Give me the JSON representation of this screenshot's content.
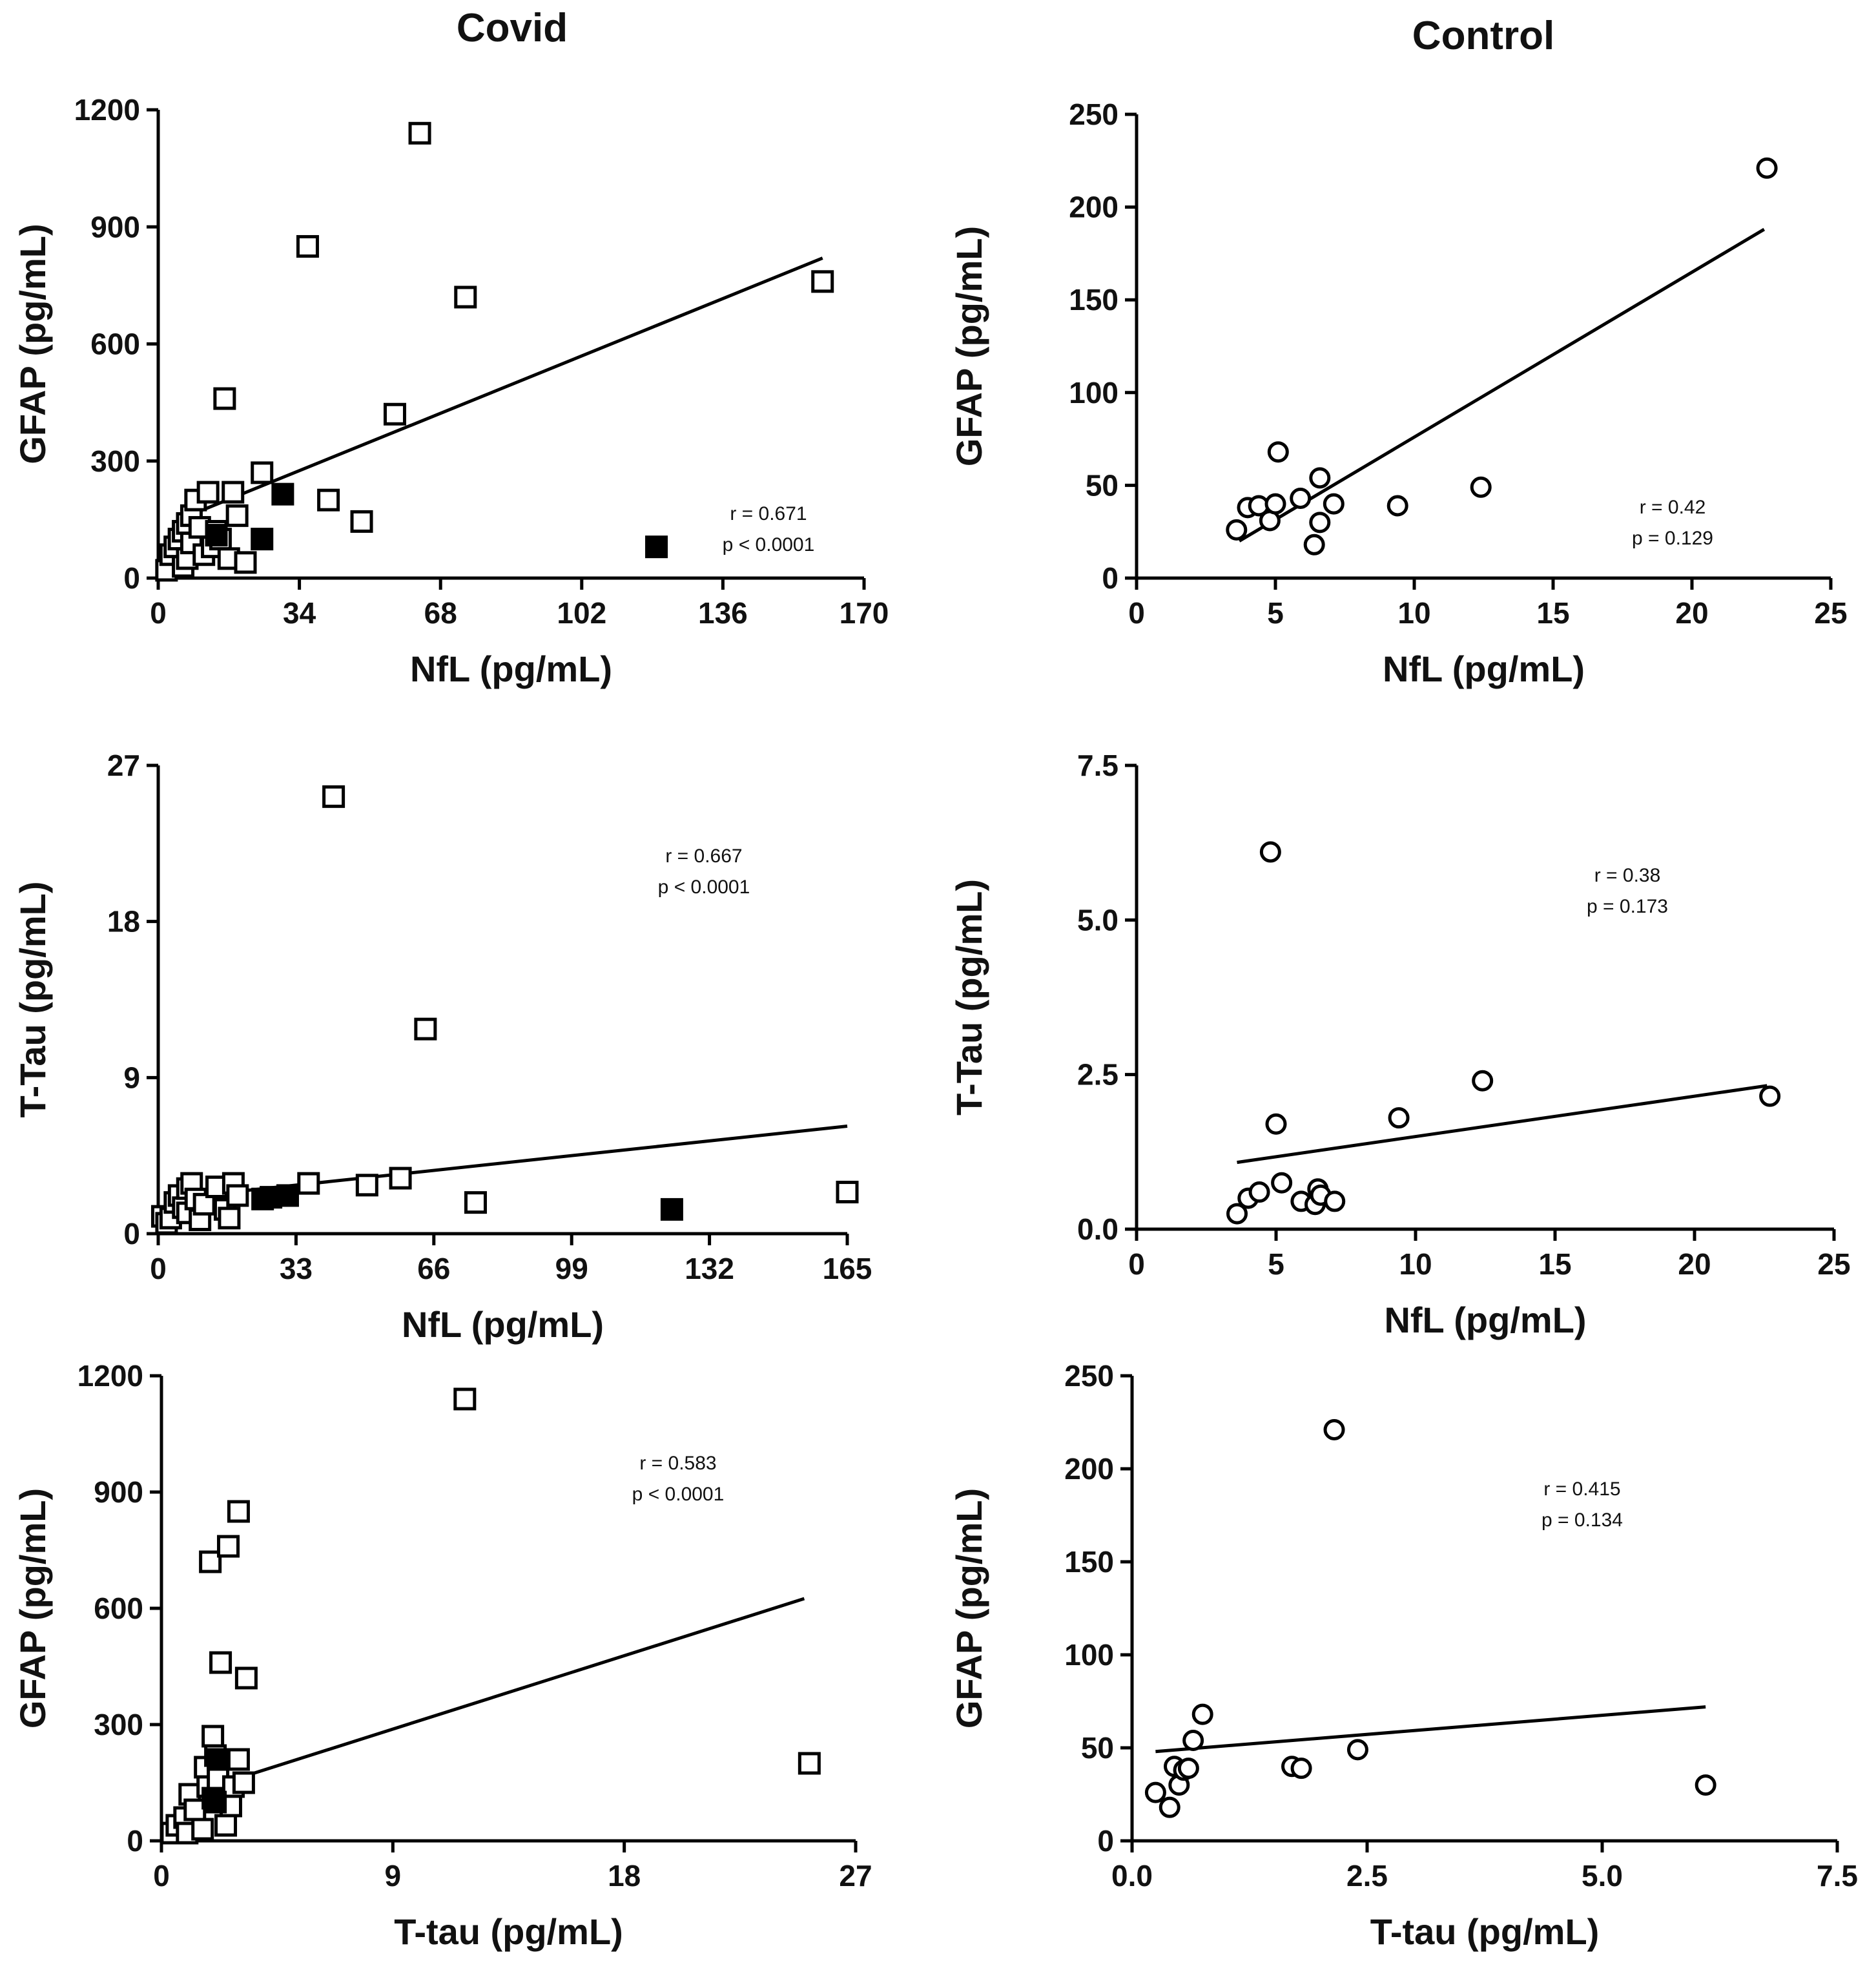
{
  "column_titles": {
    "left": "Covid",
    "right": "Control"
  },
  "chart_data": [
    {
      "id": "p1",
      "type": "scatter",
      "title": "",
      "xlabel": "NfL (pg/mL)",
      "ylabel": "GFAP (pg/mL)",
      "xlim": [
        0,
        170
      ],
      "ylim": [
        0,
        1200
      ],
      "xticks": [
        0,
        34,
        68,
        102,
        136,
        170
      ],
      "yticks": [
        0,
        300,
        600,
        900,
        1200
      ],
      "xtick_labels": [
        "0",
        "34",
        "68",
        "102",
        "136",
        "170"
      ],
      "ytick_labels": [
        "0",
        "300",
        "600",
        "900",
        "1200"
      ],
      "marker": "square",
      "annotation": {
        "r": "r = 0.671",
        "p": "p < 0.0001"
      },
      "fit_line": {
        "x": [
          5,
          160
        ],
        "y": [
          150,
          820
        ]
      },
      "series": [
        {
          "name": "open",
          "fill": "none",
          "points": [
            [
              2,
              20
            ],
            [
              3,
              60
            ],
            [
              4,
              80
            ],
            [
              5,
              100
            ],
            [
              6,
              120
            ],
            [
              6,
              30
            ],
            [
              7,
              140
            ],
            [
              7,
              50
            ],
            [
              8,
              160
            ],
            [
              8,
              90
            ],
            [
              9,
              200
            ],
            [
              10,
              130
            ],
            [
              11,
              60
            ],
            [
              12,
              220
            ],
            [
              13,
              80
            ],
            [
              14,
              120
            ],
            [
              15,
              100
            ],
            [
              16,
              460
            ],
            [
              17,
              50
            ],
            [
              18,
              220
            ],
            [
              19,
              160
            ],
            [
              21,
              40
            ],
            [
              25,
              270
            ],
            [
              36,
              850
            ],
            [
              41,
              200
            ],
            [
              49,
              145
            ],
            [
              57,
              420
            ],
            [
              63,
              1140
            ],
            [
              74,
              720
            ],
            [
              160,
              760
            ]
          ]
        },
        {
          "name": "filled",
          "fill": "#000000",
          "points": [
            [
              14,
              110
            ],
            [
              25,
              100
            ],
            [
              30,
              215
            ],
            [
              120,
              80
            ]
          ]
        }
      ]
    },
    {
      "id": "p2",
      "type": "scatter",
      "title": "",
      "xlabel": "NfL (pg/mL)",
      "ylabel": "GFAP (pg/mL)",
      "xlim": [
        0,
        25
      ],
      "ylim": [
        0,
        250
      ],
      "xticks": [
        0,
        5,
        10,
        15,
        20,
        25
      ],
      "yticks": [
        0,
        50,
        100,
        150,
        200,
        250
      ],
      "xtick_labels": [
        "0",
        "5",
        "10",
        "15",
        "20",
        "25"
      ],
      "ytick_labels": [
        "0",
        "50",
        "100",
        "150",
        "200",
        "250"
      ],
      "marker": "circle",
      "annotation": {
        "r": "r = 0.42",
        "p": "p = 0.129"
      },
      "fit_line": {
        "x": [
          3.7,
          22.6
        ],
        "y": [
          20,
          188
        ]
      },
      "series": [
        {
          "name": "control",
          "fill": "none",
          "points": [
            [
              3.6,
              26
            ],
            [
              4.0,
              38
            ],
            [
              4.4,
              39
            ],
            [
              4.8,
              31
            ],
            [
              5.0,
              40
            ],
            [
              5.1,
              68
            ],
            [
              5.9,
              43
            ],
            [
              6.4,
              18
            ],
            [
              6.6,
              30
            ],
            [
              6.6,
              54
            ],
            [
              7.1,
              40
            ],
            [
              9.4,
              39
            ],
            [
              12.4,
              49
            ],
            [
              22.7,
              221
            ]
          ]
        }
      ]
    },
    {
      "id": "p3",
      "type": "scatter",
      "title": "",
      "xlabel": "NfL (pg/mL)",
      "ylabel": "T-Tau (pg/mL)",
      "xlim": [
        0,
        165
      ],
      "ylim": [
        0,
        27
      ],
      "xticks": [
        0,
        33,
        66,
        99,
        132,
        165
      ],
      "yticks": [
        0,
        9,
        18,
        27
      ],
      "xtick_labels": [
        "0",
        "33",
        "66",
        "99",
        "132",
        "165"
      ],
      "ytick_labels": [
        "0",
        "9",
        "18",
        "27"
      ],
      "marker": "square",
      "annotation": {
        "r": "r = 0.667",
        "p": "p < 0.0001"
      },
      "fit_line": {
        "x": [
          2,
          165
        ],
        "y": [
          2.0,
          6.2
        ]
      },
      "series": [
        {
          "name": "open",
          "fill": "none",
          "points": [
            [
              1,
              1.0
            ],
            [
              2,
              0.6
            ],
            [
              3,
              0.9
            ],
            [
              4,
              1.8
            ],
            [
              5,
              2.2
            ],
            [
              6,
              1.5
            ],
            [
              7,
              2.6
            ],
            [
              7,
              1.2
            ],
            [
              8,
              2.9
            ],
            [
              9,
              2.0
            ],
            [
              10,
              0.8
            ],
            [
              11,
              1.7
            ],
            [
              14,
              2.7
            ],
            [
              16,
              1.4
            ],
            [
              17,
              0.9
            ],
            [
              18,
              2.9
            ],
            [
              19,
              2.2
            ],
            [
              36,
              2.9
            ],
            [
              50,
              2.8
            ],
            [
              58,
              3.2
            ],
            [
              64,
              11.8
            ],
            [
              42,
              25.2
            ],
            [
              76,
              1.8
            ],
            [
              165,
              2.4
            ]
          ]
        },
        {
          "name": "filled",
          "fill": "#000000",
          "points": [
            [
              25,
              2.0
            ],
            [
              27,
              2.1
            ],
            [
              31,
              2.2
            ],
            [
              123,
              1.4
            ]
          ]
        }
      ]
    },
    {
      "id": "p4",
      "type": "scatter",
      "title": "",
      "xlabel": "NfL (pg/mL)",
      "ylabel": "T-Tau (pg/mL)",
      "xlim": [
        0,
        25
      ],
      "ylim": [
        0,
        7.5
      ],
      "xticks": [
        0,
        5,
        10,
        15,
        20,
        25
      ],
      "yticks": [
        0,
        2.5,
        5.0,
        7.5
      ],
      "xtick_labels": [
        "0",
        "5",
        "10",
        "15",
        "20",
        "25"
      ],
      "ytick_labels": [
        "0.0",
        "2.5",
        "5.0",
        "7.5"
      ],
      "marker": "circle",
      "annotation": {
        "r": "r = 0.38",
        "p": "p = 0.173"
      },
      "fit_line": {
        "x": [
          3.6,
          22.6
        ],
        "y": [
          1.08,
          2.32
        ]
      },
      "series": [
        {
          "name": "control",
          "fill": "none",
          "points": [
            [
              3.6,
              0.25
            ],
            [
              4.0,
              0.5
            ],
            [
              4.4,
              0.6
            ],
            [
              4.8,
              6.1
            ],
            [
              5.0,
              1.7
            ],
            [
              5.2,
              0.75
            ],
            [
              5.9,
              0.45
            ],
            [
              6.4,
              0.4
            ],
            [
              6.5,
              0.65
            ],
            [
              6.6,
              0.55
            ],
            [
              7.1,
              0.45
            ],
            [
              9.4,
              1.8
            ],
            [
              12.4,
              2.4
            ],
            [
              22.7,
              2.15
            ]
          ]
        }
      ]
    },
    {
      "id": "p5",
      "type": "scatter",
      "title": "",
      "xlabel": "T-tau (pg/mL)",
      "ylabel": "GFAP (pg/mL)",
      "xlim": [
        0,
        27
      ],
      "ylim": [
        0,
        1200
      ],
      "xticks": [
        0,
        9,
        18,
        27
      ],
      "yticks": [
        0,
        300,
        600,
        900,
        1200
      ],
      "xtick_labels": [
        "0",
        "9",
        "18",
        "27"
      ],
      "ytick_labels": [
        "0",
        "300",
        "600",
        "900",
        "1200"
      ],
      "marker": "square",
      "annotation": {
        "r": "r = 0.583",
        "p": "p < 0.0001"
      },
      "fit_line": {
        "x": [
          1,
          25
        ],
        "y": [
          120,
          625
        ]
      },
      "series": [
        {
          "name": "open",
          "fill": "none",
          "points": [
            [
              0.4,
              20
            ],
            [
              0.6,
              40
            ],
            [
              0.9,
              60
            ],
            [
              1.0,
              20
            ],
            [
              1.1,
              120
            ],
            [
              1.3,
              80
            ],
            [
              1.6,
              30
            ],
            [
              1.7,
              190
            ],
            [
              1.8,
              140
            ],
            [
              1.9,
              720
            ],
            [
              2.0,
              270
            ],
            [
              2.1,
              220
            ],
            [
              2.2,
              160
            ],
            [
              2.3,
              460
            ],
            [
              2.5,
              40
            ],
            [
              2.6,
              760
            ],
            [
              2.7,
              90
            ],
            [
              2.8,
              140
            ],
            [
              3.0,
              850
            ],
            [
              3.0,
              210
            ],
            [
              3.2,
              150
            ],
            [
              3.3,
              420
            ],
            [
              11.8,
              1140
            ],
            [
              25.2,
              200
            ]
          ]
        },
        {
          "name": "filled",
          "fill": "#000000",
          "points": [
            [
              2.0,
              110
            ],
            [
              2.1,
              100
            ],
            [
              2.2,
              210
            ]
          ]
        }
      ]
    },
    {
      "id": "p6",
      "type": "scatter",
      "title": "",
      "xlabel": "T-tau (pg/mL)",
      "ylabel": "GFAP (pg/mL)",
      "xlim": [
        0,
        7.5
      ],
      "ylim": [
        0,
        250
      ],
      "xticks": [
        0,
        2.5,
        5.0,
        7.5
      ],
      "yticks": [
        0,
        50,
        100,
        150,
        200,
        250
      ],
      "xtick_labels": [
        "0.0",
        "2.5",
        "5.0",
        "7.5"
      ],
      "ytick_labels": [
        "0",
        "50",
        "100",
        "150",
        "200",
        "250"
      ],
      "marker": "circle",
      "annotation": {
        "r": "r = 0.415",
        "p": "p = 0.134"
      },
      "fit_line": {
        "x": [
          0.25,
          6.1
        ],
        "y": [
          48,
          72
        ]
      },
      "series": [
        {
          "name": "control",
          "fill": "none",
          "points": [
            [
              0.25,
              26
            ],
            [
              0.4,
              18
            ],
            [
              0.45,
              40
            ],
            [
              0.5,
              30
            ],
            [
              0.55,
              38
            ],
            [
              0.6,
              39
            ],
            [
              0.65,
              54
            ],
            [
              0.75,
              68
            ],
            [
              1.7,
              40
            ],
            [
              1.8,
              39
            ],
            [
              2.15,
              221
            ],
            [
              2.4,
              49
            ],
            [
              6.1,
              30
            ]
          ]
        }
      ]
    }
  ]
}
